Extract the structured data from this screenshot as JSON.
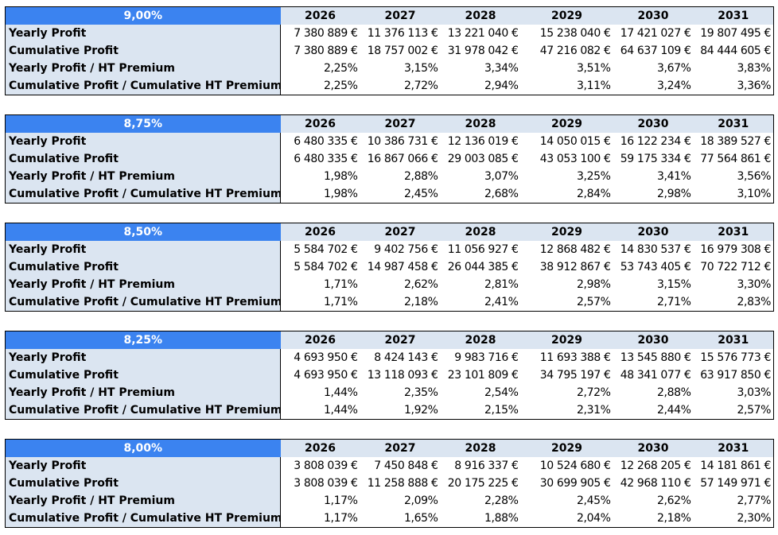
{
  "years": [
    "2026",
    "2027",
    "2028",
    "2029",
    "2030",
    "2031"
  ],
  "row_labels": [
    "Yearly Profit",
    "Cumulative Profit",
    "Yearly Profit / HT Premium",
    "Cumulative Profit / Cumulative HT Premium"
  ],
  "tables": [
    {
      "rate": "9,00%",
      "rows": [
        [
          "7 380 889 €",
          "11 376 113 €",
          "13 221 040 €",
          "15 238 040 €",
          "17 421 027 €",
          "19 807 495 €"
        ],
        [
          "7 380 889 €",
          "18 757 002 €",
          "31 978 042 €",
          "47 216 082 €",
          "64 637 109 €",
          "84 444 605 €"
        ],
        [
          "2,25%",
          "3,15%",
          "3,34%",
          "3,51%",
          "3,67%",
          "3,83%"
        ],
        [
          "2,25%",
          "2,72%",
          "2,94%",
          "3,11%",
          "3,24%",
          "3,36%"
        ]
      ]
    },
    {
      "rate": "8,75%",
      "rows": [
        [
          "6 480 335 €",
          "10 386 731 €",
          "12 136 019 €",
          "14 050 015 €",
          "16 122 234 €",
          "18 389 527 €"
        ],
        [
          "6 480 335 €",
          "16 867 066 €",
          "29 003 085 €",
          "43 053 100 €",
          "59 175 334 €",
          "77 564 861 €"
        ],
        [
          "1,98%",
          "2,88%",
          "3,07%",
          "3,25%",
          "3,41%",
          "3,56%"
        ],
        [
          "1,98%",
          "2,45%",
          "2,68%",
          "2,84%",
          "2,98%",
          "3,10%"
        ]
      ]
    },
    {
      "rate": "8,50%",
      "rows": [
        [
          "5 584 702 €",
          "9 402 756 €",
          "11 056 927 €",
          "12 868 482 €",
          "14 830 537 €",
          "16 979 308 €"
        ],
        [
          "5 584 702 €",
          "14 987 458 €",
          "26 044 385 €",
          "38 912 867 €",
          "53 743 405 €",
          "70 722 712 €"
        ],
        [
          "1,71%",
          "2,62%",
          "2,81%",
          "2,98%",
          "3,15%",
          "3,30%"
        ],
        [
          "1,71%",
          "2,18%",
          "2,41%",
          "2,57%",
          "2,71%",
          "2,83%"
        ]
      ]
    },
    {
      "rate": "8,25%",
      "rows": [
        [
          "4 693 950 €",
          "8 424 143 €",
          "9 983 716 €",
          "11 693 388 €",
          "13 545 880 €",
          "15 576 773 €"
        ],
        [
          "4 693 950 €",
          "13 118 093 €",
          "23 101 809 €",
          "34 795 197 €",
          "48 341 077 €",
          "63 917 850 €"
        ],
        [
          "1,44%",
          "2,35%",
          "2,54%",
          "2,72%",
          "2,88%",
          "3,03%"
        ],
        [
          "1,44%",
          "1,92%",
          "2,15%",
          "2,31%",
          "2,44%",
          "2,57%"
        ]
      ]
    },
    {
      "rate": "8,00%",
      "rows": [
        [
          "3 808 039 €",
          "7 450 848 €",
          "8 916 337 €",
          "10 524 680 €",
          "12 268 205 €",
          "14 181 861 €"
        ],
        [
          "3 808 039 €",
          "11 258 888 €",
          "20 175 225 €",
          "30 699 905 €",
          "42 968 110 €",
          "57 149 971 €"
        ],
        [
          "1,17%",
          "2,09%",
          "2,28%",
          "2,45%",
          "2,62%",
          "2,77%"
        ],
        [
          "1,17%",
          "1,65%",
          "1,88%",
          "2,04%",
          "2,18%",
          "2,30%"
        ]
      ]
    }
  ]
}
